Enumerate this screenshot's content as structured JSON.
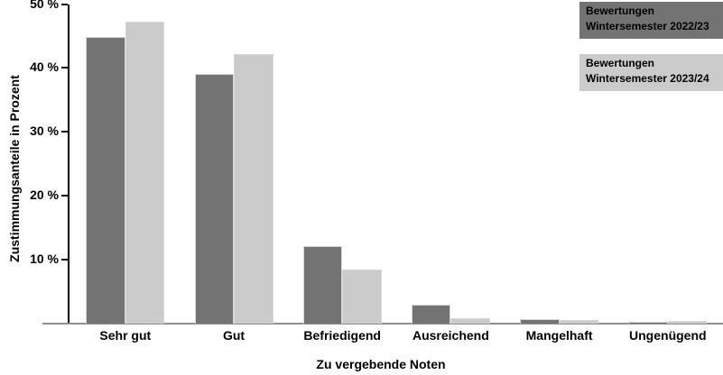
{
  "chart_data": {
    "type": "bar",
    "title": "",
    "xlabel": "Zu vergebende Noten",
    "ylabel": "Zustimmungsanteile in Prozent",
    "categories": [
      "Sehr gut",
      "Gut",
      "Befriedigend",
      "Ausreichend",
      "Mangelhaft",
      "Ungenügend"
    ],
    "series": [
      {
        "name": "Bewertungen Wintersemester 2022/23",
        "color": "#737373",
        "values": [
          44.8,
          39.0,
          12.1,
          2.9,
          0.7,
          0.3
        ]
      },
      {
        "name": "Bewertungen Wintersemester 2023/24",
        "color": "#cbcbcb",
        "values": [
          47.3,
          42.2,
          8.5,
          0.8,
          0.5,
          0.4
        ]
      }
    ],
    "ylim": [
      0,
      50
    ],
    "yticks": [
      10,
      20,
      30,
      40,
      50
    ],
    "ytick_format": "{v} %",
    "grid": false,
    "background": "#ffffff",
    "axis_color": "#000000",
    "baseline_color": "#8f8f8f",
    "bar_border_color": "#d8d8d8",
    "legend_position": "top-right",
    "legend": [
      {
        "lines": [
          "Bewertungen",
          "Wintersemester 2022/23"
        ],
        "color": "#737373",
        "text_color": "#000000"
      },
      {
        "lines": [
          "Bewertungen",
          "Wintersemester 2023/24"
        ],
        "color": "#cbcbcb",
        "text_color": "#000000"
      }
    ]
  }
}
